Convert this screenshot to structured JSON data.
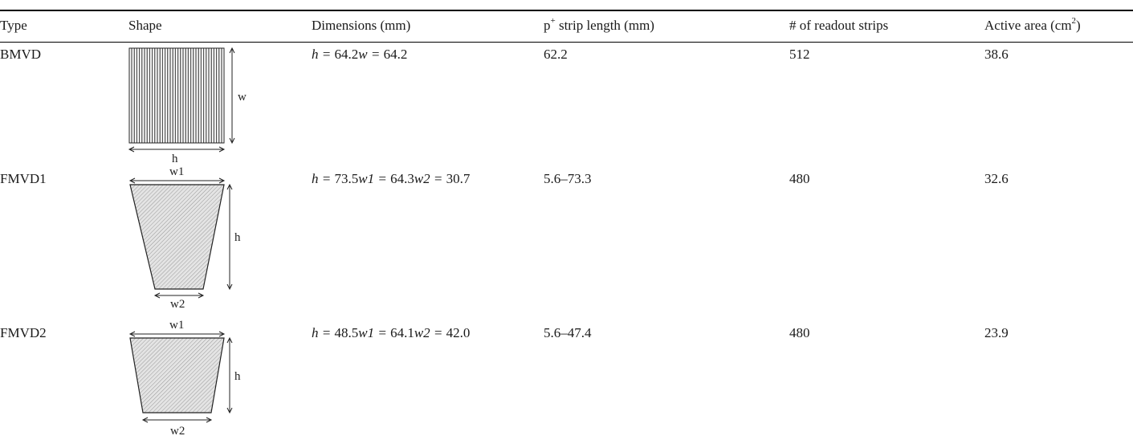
{
  "table": {
    "headers": {
      "type": "Type",
      "shape": "Shape",
      "dimensions": "Dimensions (mm)",
      "strip_prefix": "p",
      "strip_sup": "+",
      "strip_suffix": " strip length (mm)",
      "readout": "# of readout strips",
      "area_prefix": "Active area (cm",
      "area_sup": "2",
      "area_suffix": ")"
    },
    "rows": [
      {
        "type": "BMVD",
        "shape_labels": {
          "w": "w",
          "h": "h"
        },
        "dims": [
          {
            "var": "h",
            "val": "64.2"
          },
          {
            "var": "w",
            "val": "64.2"
          }
        ],
        "strip_length": "62.2",
        "readout_strips": "512",
        "active_area": "38.6"
      },
      {
        "type": "FMVD1",
        "shape_labels": {
          "w1": "w1",
          "h": "h",
          "w2": "w2"
        },
        "dims": [
          {
            "var": "h",
            "val": "73.5"
          },
          {
            "var": "w1",
            "val": "64.3"
          },
          {
            "var": "w2",
            "val": "30.7"
          }
        ],
        "strip_length": "5.6–73.3",
        "readout_strips": "480",
        "active_area": "32.6"
      },
      {
        "type": "FMVD2",
        "shape_labels": {
          "w1": "w1",
          "h": "h",
          "w2": "w2"
        },
        "dims": [
          {
            "var": "h",
            "val": "48.5"
          },
          {
            "var": "w1",
            "val": "64.1"
          },
          {
            "var": "w2",
            "val": "42.0"
          }
        ],
        "strip_length": "5.6–47.4",
        "readout_strips": "480",
        "active_area": "23.9"
      }
    ]
  }
}
